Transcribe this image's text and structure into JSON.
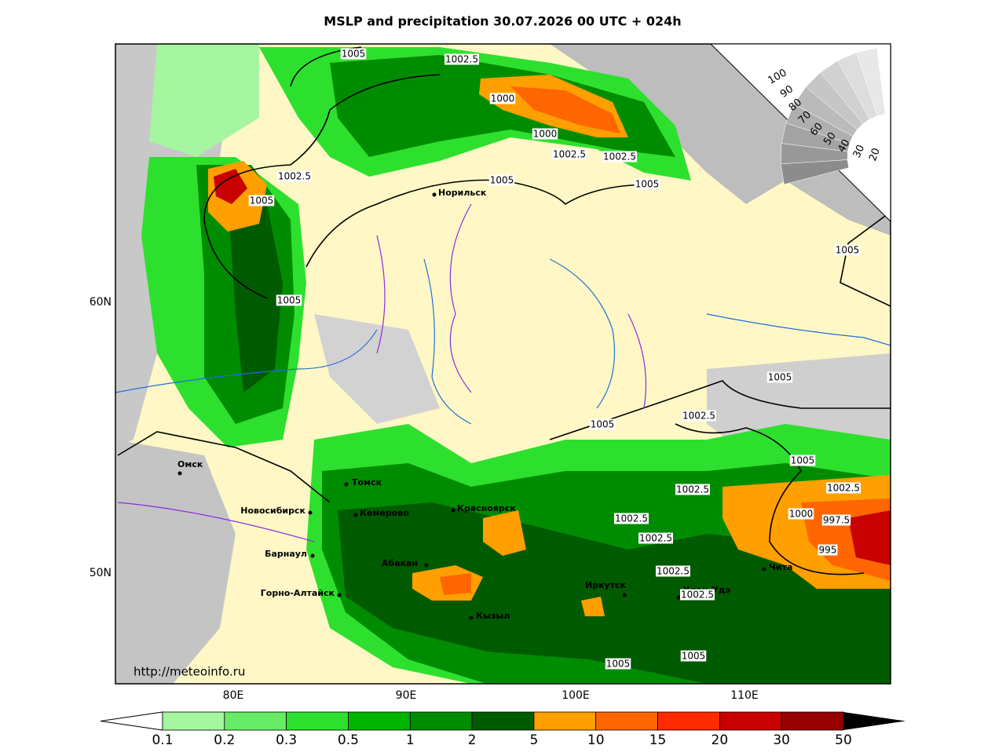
{
  "title": "MSLP and precipitation 30.07.2026 00 UTC + 024h",
  "axes": {
    "lon_labels": [
      "80E",
      "90E",
      "100E",
      "110E"
    ],
    "lat_labels": [
      "60N",
      "50N"
    ]
  },
  "cities": [
    "Норильск",
    "Омск",
    "Томск",
    "Новосибирск",
    "Кемерово",
    "Красноярск",
    "Барнаул",
    "Абакан",
    "Горно-Алтайск",
    "Кызыл",
    "Иркутск",
    "Улан-Удэ",
    "Чита"
  ],
  "isobar_labels": [
    "1005",
    "1002.5",
    "1000",
    "1000",
    "1002.5",
    "1002.5",
    "1005",
    "1005",
    "1002.5",
    "1005",
    "1005",
    "1005",
    "1005",
    "1002.5",
    "1005",
    "1005",
    "1002.5",
    "1002.5",
    "1000",
    "997.5",
    "1002.5",
    "1002.5",
    "995",
    "1002.5",
    "1002.5",
    "1005",
    "1005"
  ],
  "cloud_scale": [
    100,
    90,
    80,
    70,
    60,
    50,
    40,
    30,
    20
  ],
  "colorbar": {
    "labels": [
      0.1,
      0.2,
      0.3,
      0.5,
      1,
      2,
      5,
      10,
      15,
      20,
      30,
      50
    ],
    "colors": [
      "#a6f5a0",
      "#66ec66",
      "#2ee02e",
      "#00b400",
      "#008c00",
      "#005a00",
      "#ff9f00",
      "#ff6600",
      "#ff2a00",
      "#c80000",
      "#960000"
    ]
  },
  "source": "http://meteoinfo.ru"
}
